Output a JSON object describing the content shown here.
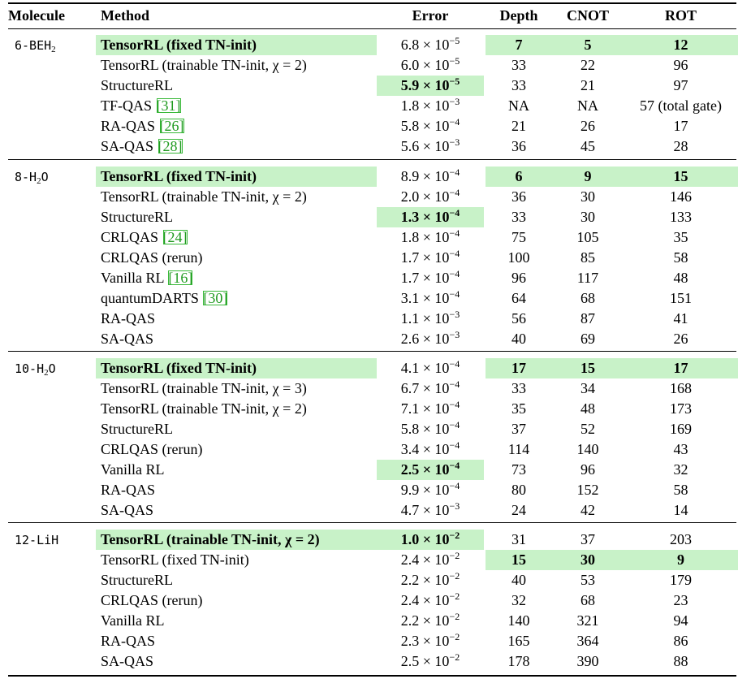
{
  "header": {
    "molecule": "Molecule",
    "method": "Method",
    "error": "Error",
    "depth": "Depth",
    "cnot": "CNOT",
    "rot": "ROT"
  },
  "groups": [
    {
      "molecule": {
        "prefix": "6-BEH",
        "sub": "2",
        "suffix": ""
      },
      "rows": [
        {
          "method": "TensorRL (fixed TN-init)",
          "ref": "",
          "method_hl": true,
          "method_bold": true,
          "error_mant": "6.8",
          "error_exp": "−5",
          "error_hl": false,
          "error_bold": false,
          "depth": "7",
          "cnot": "5",
          "rot": "12",
          "gates_hl": true,
          "gates_bold": true
        },
        {
          "method": "TensorRL (trainable TN-init, χ = 2)",
          "ref": "",
          "method_hl": false,
          "method_bold": false,
          "error_mant": "6.0",
          "error_exp": "−5",
          "error_hl": false,
          "error_bold": false,
          "depth": "33",
          "cnot": "22",
          "rot": "96",
          "gates_hl": false,
          "gates_bold": false
        },
        {
          "method": "StructureRL",
          "ref": "",
          "method_hl": false,
          "method_bold": false,
          "error_mant": "5.9",
          "error_exp": "−5",
          "error_hl": true,
          "error_bold": true,
          "depth": "33",
          "cnot": "21",
          "rot": "97",
          "gates_hl": false,
          "gates_bold": false
        },
        {
          "method": "TF-QAS ",
          "ref": "[31]",
          "method_hl": false,
          "method_bold": false,
          "error_mant": "1.8",
          "error_exp": "−3",
          "error_hl": false,
          "error_bold": false,
          "depth": "NA",
          "cnot": "NA",
          "rot": "57 (total gate)",
          "gates_hl": false,
          "gates_bold": false
        },
        {
          "method": "RA-QAS ",
          "ref": "[26]",
          "method_hl": false,
          "method_bold": false,
          "error_mant": "5.8",
          "error_exp": "−4",
          "error_hl": false,
          "error_bold": false,
          "depth": "21",
          "cnot": "26",
          "rot": "17",
          "gates_hl": false,
          "gates_bold": false
        },
        {
          "method": "SA-QAS ",
          "ref": "[28]",
          "method_hl": false,
          "method_bold": false,
          "error_mant": "5.6",
          "error_exp": "−3",
          "error_hl": false,
          "error_bold": false,
          "depth": "36",
          "cnot": "45",
          "rot": "28",
          "gates_hl": false,
          "gates_bold": false
        }
      ]
    },
    {
      "molecule": {
        "prefix": "8-H",
        "sub": "2",
        "suffix": "O"
      },
      "rows": [
        {
          "method": "TensorRL (fixed TN-init)",
          "ref": "",
          "method_hl": true,
          "method_bold": true,
          "error_mant": "8.9",
          "error_exp": "−4",
          "error_hl": false,
          "error_bold": false,
          "depth": "6",
          "cnot": "9",
          "rot": "15",
          "gates_hl": true,
          "gates_bold": true
        },
        {
          "method": "TensorRL (trainable TN-init, χ = 2)",
          "ref": "",
          "method_hl": false,
          "method_bold": false,
          "error_mant": "2.0",
          "error_exp": "−4",
          "error_hl": false,
          "error_bold": false,
          "depth": "36",
          "cnot": "30",
          "rot": "146",
          "gates_hl": false,
          "gates_bold": false
        },
        {
          "method": "StructureRL",
          "ref": "",
          "method_hl": false,
          "method_bold": false,
          "error_mant": "1.3",
          "error_exp": "−4",
          "error_hl": true,
          "error_bold": true,
          "depth": "33",
          "cnot": "30",
          "rot": "133",
          "gates_hl": false,
          "gates_bold": false
        },
        {
          "method": "CRLQAS ",
          "ref": "[24]",
          "method_hl": false,
          "method_bold": false,
          "error_mant": "1.8",
          "error_exp": "−4",
          "error_hl": false,
          "error_bold": false,
          "depth": "75",
          "cnot": "105",
          "rot": "35",
          "gates_hl": false,
          "gates_bold": false
        },
        {
          "method": "CRLQAS (rerun)",
          "ref": "",
          "method_hl": false,
          "method_bold": false,
          "error_mant": "1.7",
          "error_exp": "−4",
          "error_hl": false,
          "error_bold": false,
          "depth": "100",
          "cnot": "85",
          "rot": "58",
          "gates_hl": false,
          "gates_bold": false
        },
        {
          "method": "Vanilla RL ",
          "ref": "[16]",
          "method_hl": false,
          "method_bold": false,
          "error_mant": "1.7",
          "error_exp": "−4",
          "error_hl": false,
          "error_bold": false,
          "depth": "96",
          "cnot": "117",
          "rot": "48",
          "gates_hl": false,
          "gates_bold": false
        },
        {
          "method": "quantumDARTS ",
          "ref": "[30]",
          "method_hl": false,
          "method_bold": false,
          "error_mant": "3.1",
          "error_exp": "−4",
          "error_hl": false,
          "error_bold": false,
          "depth": "64",
          "cnot": "68",
          "rot": "151",
          "gates_hl": false,
          "gates_bold": false
        },
        {
          "method": "RA-QAS",
          "ref": "",
          "method_hl": false,
          "method_bold": false,
          "error_mant": "1.1",
          "error_exp": "−3",
          "error_hl": false,
          "error_bold": false,
          "depth": "56",
          "cnot": "87",
          "rot": "41",
          "gates_hl": false,
          "gates_bold": false
        },
        {
          "method": "SA-QAS",
          "ref": "",
          "method_hl": false,
          "method_bold": false,
          "error_mant": "2.6",
          "error_exp": "−3",
          "error_hl": false,
          "error_bold": false,
          "depth": "40",
          "cnot": "69",
          "rot": "26",
          "gates_hl": false,
          "gates_bold": false
        }
      ]
    },
    {
      "molecule": {
        "prefix": "10-H",
        "sub": "2",
        "suffix": "O"
      },
      "rows": [
        {
          "method": "TensorRL (fixed TN-init)",
          "ref": "",
          "method_hl": true,
          "method_bold": true,
          "error_mant": "4.1",
          "error_exp": "−4",
          "error_hl": false,
          "error_bold": false,
          "depth": "17",
          "cnot": "15",
          "rot": "17",
          "gates_hl": true,
          "gates_bold": true
        },
        {
          "method": "TensorRL (trainable TN-init, χ = 3)",
          "ref": "",
          "method_hl": false,
          "method_bold": false,
          "error_mant": "6.7",
          "error_exp": "−4",
          "error_hl": false,
          "error_bold": false,
          "depth": "33",
          "cnot": "34",
          "rot": "168",
          "gates_hl": false,
          "gates_bold": false
        },
        {
          "method": "TensorRL (trainable TN-init, χ = 2)",
          "ref": "",
          "method_hl": false,
          "method_bold": false,
          "error_mant": "7.1",
          "error_exp": "−4",
          "error_hl": false,
          "error_bold": false,
          "depth": "35",
          "cnot": "48",
          "rot": "173",
          "gates_hl": false,
          "gates_bold": false
        },
        {
          "method": "StructureRL",
          "ref": "",
          "method_hl": false,
          "method_bold": false,
          "error_mant": "5.8",
          "error_exp": "−4",
          "error_hl": false,
          "error_bold": false,
          "depth": "37",
          "cnot": "52",
          "rot": "169",
          "gates_hl": false,
          "gates_bold": false
        },
        {
          "method": "CRLQAS (rerun)",
          "ref": "",
          "method_hl": false,
          "method_bold": false,
          "error_mant": "3.4",
          "error_exp": "−4",
          "error_hl": false,
          "error_bold": false,
          "depth": "114",
          "cnot": "140",
          "rot": "43",
          "gates_hl": false,
          "gates_bold": false
        },
        {
          "method": "Vanilla RL",
          "ref": "",
          "method_hl": false,
          "method_bold": false,
          "error_mant": "2.5",
          "error_exp": "−4",
          "error_hl": true,
          "error_bold": true,
          "depth": "73",
          "cnot": "96",
          "rot": "32",
          "gates_hl": false,
          "gates_bold": false
        },
        {
          "method": "RA-QAS",
          "ref": "",
          "method_hl": false,
          "method_bold": false,
          "error_mant": "9.9",
          "error_exp": "−4",
          "error_hl": false,
          "error_bold": false,
          "depth": "80",
          "cnot": "152",
          "rot": "58",
          "gates_hl": false,
          "gates_bold": false
        },
        {
          "method": "SA-QAS",
          "ref": "",
          "method_hl": false,
          "method_bold": false,
          "error_mant": "4.7",
          "error_exp": "−3",
          "error_hl": false,
          "error_bold": false,
          "depth": "24",
          "cnot": "42",
          "rot": "14",
          "gates_hl": false,
          "gates_bold": false
        }
      ]
    },
    {
      "molecule": {
        "prefix": "12-LiH",
        "sub": "",
        "suffix": ""
      },
      "rows": [
        {
          "method": "TensorRL (trainable TN-init, χ = 2)",
          "ref": "",
          "method_hl": true,
          "method_bold": true,
          "error_mant": "1.0",
          "error_exp": "−2",
          "error_hl": true,
          "error_bold": true,
          "depth": "31",
          "cnot": "37",
          "rot": "203",
          "gates_hl": false,
          "gates_bold": false
        },
        {
          "method": "TensorRL (fixed TN-init)",
          "ref": "",
          "method_hl": false,
          "method_bold": false,
          "error_mant": "2.4",
          "error_exp": "−2",
          "error_hl": false,
          "error_bold": false,
          "depth": "15",
          "cnot": "30",
          "rot": "9",
          "gates_hl": true,
          "gates_bold": true
        },
        {
          "method": "StructureRL",
          "ref": "",
          "method_hl": false,
          "method_bold": false,
          "error_mant": "2.2",
          "error_exp": "−2",
          "error_hl": false,
          "error_bold": false,
          "depth": "40",
          "cnot": "53",
          "rot": "179",
          "gates_hl": false,
          "gates_bold": false
        },
        {
          "method": "CRLQAS (rerun)",
          "ref": "",
          "method_hl": false,
          "method_bold": false,
          "error_mant": "2.4",
          "error_exp": "−2",
          "error_hl": false,
          "error_bold": false,
          "depth": "32",
          "cnot": "68",
          "rot": "23",
          "gates_hl": false,
          "gates_bold": false
        },
        {
          "method": "Vanilla RL",
          "ref": "",
          "method_hl": false,
          "method_bold": false,
          "error_mant": "2.2",
          "error_exp": "−2",
          "error_hl": false,
          "error_bold": false,
          "depth": "140",
          "cnot": "321",
          "rot": "94",
          "gates_hl": false,
          "gates_bold": false
        },
        {
          "method": "RA-QAS",
          "ref": "",
          "method_hl": false,
          "method_bold": false,
          "error_mant": "2.3",
          "error_exp": "−2",
          "error_hl": false,
          "error_bold": false,
          "depth": "165",
          "cnot": "364",
          "rot": "86",
          "gates_hl": false,
          "gates_bold": false
        },
        {
          "method": "SA-QAS",
          "ref": "",
          "method_hl": false,
          "method_bold": false,
          "error_mant": "2.5",
          "error_exp": "−2",
          "error_hl": false,
          "error_bold": false,
          "depth": "178",
          "cnot": "390",
          "rot": "88",
          "gates_hl": false,
          "gates_bold": false
        }
      ]
    }
  ]
}
